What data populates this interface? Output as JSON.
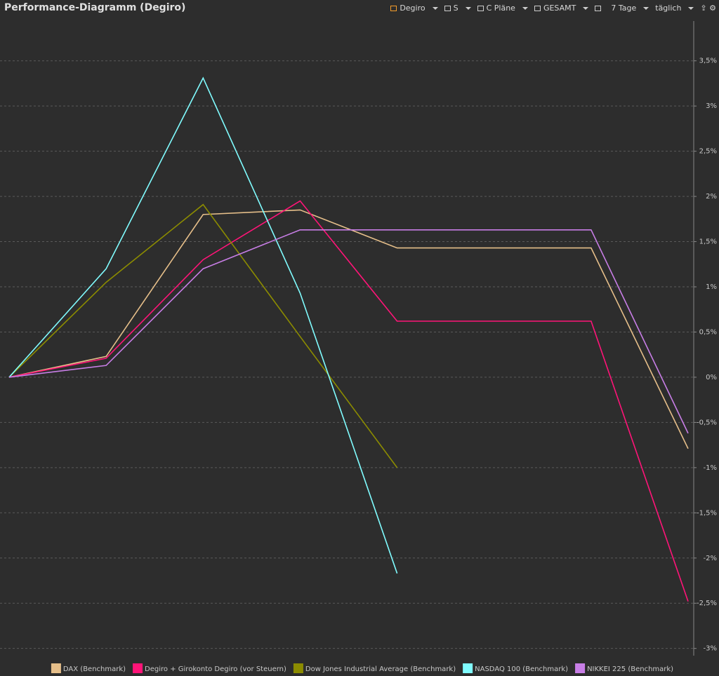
{
  "header": {
    "title": "Performance-Diagramm (Degiro)",
    "toolbar": [
      "Degiro",
      "S",
      "C Pläne",
      "GESAMT",
      "7 Tage",
      "täglich"
    ]
  },
  "chart_data": {
    "type": "line",
    "categories": [
      null,
      null,
      null,
      null,
      null,
      null,
      null,
      null
    ],
    "series": [
      {
        "name": "DAX (Benchmark)",
        "color": "#e6bf8a",
        "values": [
          0,
          0.23,
          1.8,
          1.85,
          1.43,
          1.43,
          1.43,
          -0.79
        ]
      },
      {
        "name": "Degiro + Girokonto Degiro (vor Steuern)",
        "color": "#ff1478",
        "values": [
          0,
          0.21,
          1.3,
          1.95,
          0.62,
          0.62,
          0.62,
          -2.48
        ]
      },
      {
        "name": "Dow Jones Industrial Average (Benchmark)",
        "color": "#8c8c00",
        "values": [
          0,
          1.05,
          1.91,
          0.45,
          -1.0,
          null,
          null,
          null
        ]
      },
      {
        "name": "NASDAQ 100 (Benchmark)",
        "color": "#80fcff",
        "values": [
          0,
          1.2,
          3.31,
          0.93,
          -2.17,
          null,
          null,
          null
        ]
      },
      {
        "name": "NIKKEI 225 (Benchmark)",
        "color": "#c87ee6",
        "values": [
          0,
          0.13,
          1.2,
          1.63,
          1.63,
          1.63,
          1.63,
          -0.62
        ]
      }
    ],
    "ylim": [
      -3.08,
      3.94
    ],
    "yticks": [
      {
        "value": 3.5,
        "label": "3,5%"
      },
      {
        "value": 3,
        "label": "3%"
      },
      {
        "value": 2.5,
        "label": "2,5%"
      },
      {
        "value": 2,
        "label": "2%"
      },
      {
        "value": 1.5,
        "label": "1,5%"
      },
      {
        "value": 1,
        "label": "1%"
      },
      {
        "value": 0.5,
        "label": "0,5%"
      },
      {
        "value": 0,
        "label": "0%"
      },
      {
        "value": -0.5,
        "label": "-0,5%"
      },
      {
        "value": -1,
        "label": "-1%"
      },
      {
        "value": -1.5,
        "label": "-1,5%"
      },
      {
        "value": -2,
        "label": "-2%"
      },
      {
        "value": -2.5,
        "label": "-2,5%"
      },
      {
        "value": -3,
        "label": "-3%"
      }
    ],
    "grid": true,
    "legend": "bottom"
  }
}
